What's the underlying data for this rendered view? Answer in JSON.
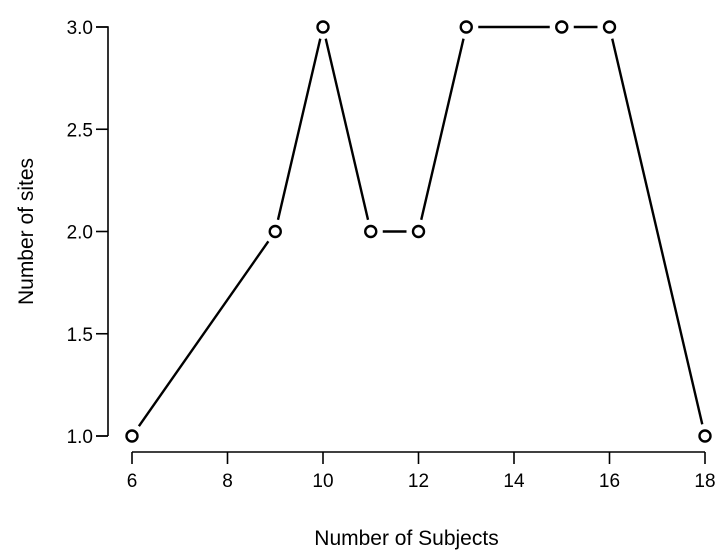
{
  "chart_data": {
    "type": "line",
    "xlabel": "Number of Subjects",
    "ylabel": "Number of sites",
    "x": [
      6,
      9,
      10,
      11,
      12,
      13,
      15,
      16,
      18
    ],
    "y": [
      1,
      2,
      3,
      2,
      2,
      3,
      3,
      3,
      1
    ],
    "x_ticks": [
      "6",
      "8",
      "10",
      "12",
      "14",
      "16",
      "18"
    ],
    "y_ticks": [
      "1.0",
      "1.5",
      "2.0",
      "2.5",
      "3.0"
    ],
    "xlim": [
      6,
      18
    ],
    "ylim": [
      1,
      3
    ],
    "grid": false,
    "legend": "none",
    "marker": "open-circle",
    "line_color": "#000000"
  }
}
